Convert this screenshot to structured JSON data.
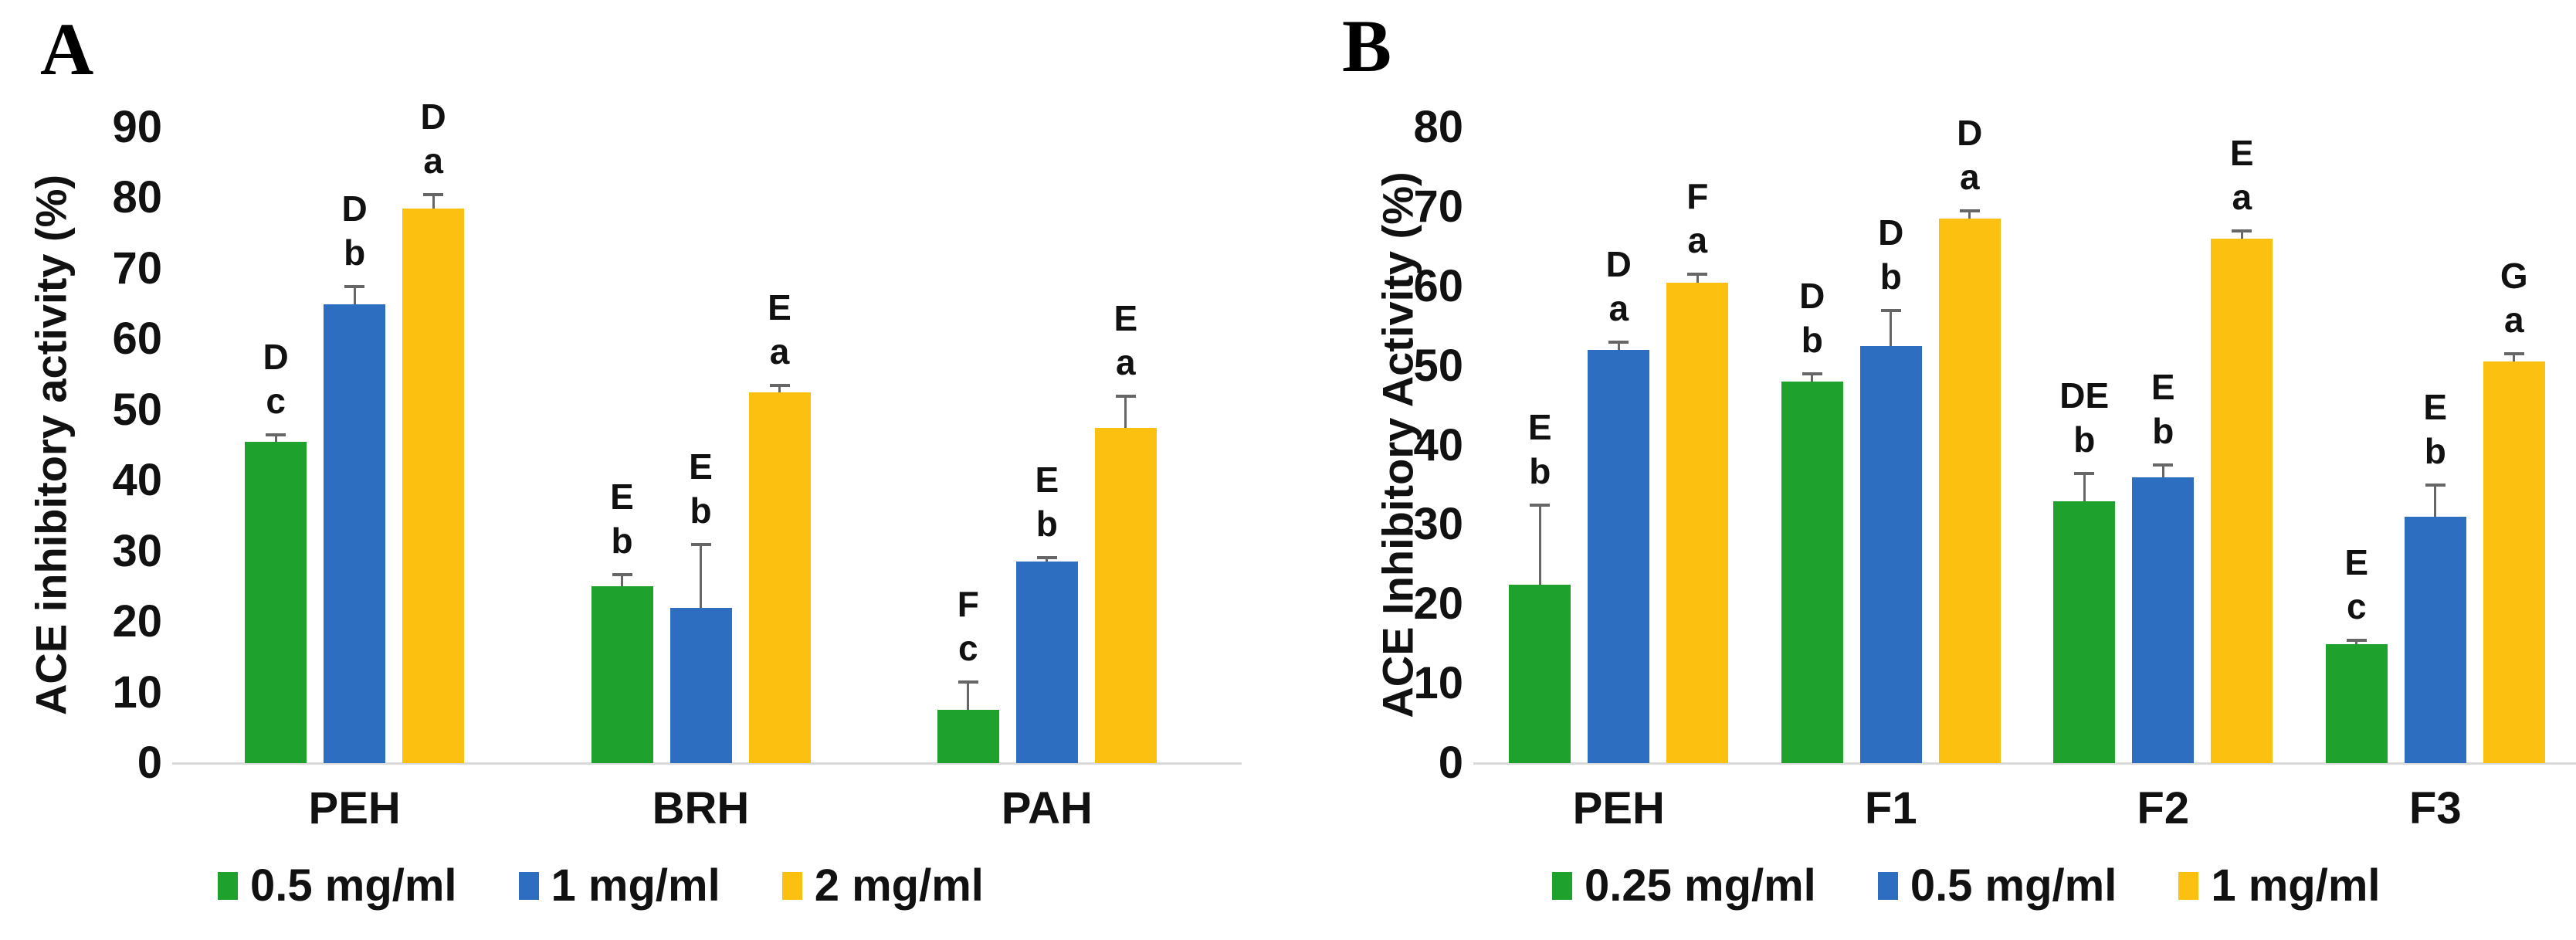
{
  "figure_title": "",
  "colors": {
    "series_green": "#1fa12d",
    "series_blue": "#2d6ec0",
    "series_yellow": "#fcc010",
    "axis_line": "#d9d9d9",
    "error_bar": "#666666",
    "text": "#111111"
  },
  "chart_data": [
    {
      "type": "bar",
      "panel_label": "A",
      "ylabel": "ACE inhibitory activity (%)",
      "xlabel": "",
      "ylim": [
        0,
        90
      ],
      "y_ticks": [
        0,
        10,
        20,
        30,
        40,
        50,
        60,
        70,
        80,
        90
      ],
      "grid": false,
      "legend_position": "bottom",
      "categories": [
        "PEH",
        "BRH",
        "PAH"
      ],
      "series": [
        {
          "name": "0.5 mg/ml",
          "color": "#1fa12d",
          "values": [
            45.5,
            25,
            7.5
          ],
          "errors": [
            1,
            1.7,
            4
          ],
          "letters": [
            [
              "D",
              "c"
            ],
            [
              "E",
              "b"
            ],
            [
              "F",
              "c"
            ]
          ]
        },
        {
          "name": "1 mg/ml",
          "color": "#2d6ec0",
          "values": [
            65,
            22,
            28.5
          ],
          "errors": [
            2.5,
            9,
            0.6
          ],
          "letters": [
            [
              "D",
              "b"
            ],
            [
              "E",
              "b"
            ],
            [
              "E",
              "b"
            ]
          ]
        },
        {
          "name": "2 mg/ml",
          "color": "#fcc010",
          "values": [
            78.5,
            52.5,
            47.5
          ],
          "errors": [
            2,
            1,
            4.5
          ],
          "letters": [
            [
              "D",
              "a"
            ],
            [
              "E",
              "a"
            ],
            [
              "E",
              "a"
            ]
          ]
        }
      ]
    },
    {
      "type": "bar",
      "panel_label": "B",
      "ylabel": "ACE Inhibitory Activity (%)",
      "xlabel": "",
      "ylim": [
        0,
        80
      ],
      "y_ticks": [
        0,
        10,
        20,
        30,
        40,
        50,
        60,
        70,
        80
      ],
      "grid": false,
      "legend_position": "bottom",
      "categories": [
        "PEH",
        "F1",
        "F2",
        "F3"
      ],
      "series": [
        {
          "name": "0.25 mg/ml",
          "color": "#1fa12d",
          "values": [
            22.5,
            48,
            33,
            15
          ],
          "errors": [
            10,
            1,
            3.5,
            0.5
          ],
          "letters": [
            [
              "E",
              "b"
            ],
            [
              "D",
              "b"
            ],
            [
              "DE",
              "b"
            ],
            [
              "E",
              "c"
            ]
          ]
        },
        {
          "name": "0.5 mg/ml",
          "color": "#2d6ec0",
          "values": [
            52,
            52.5,
            36,
            31
          ],
          "errors": [
            1,
            4.5,
            1.5,
            4
          ],
          "letters": [
            [
              "D",
              "a"
            ],
            [
              "D",
              "b"
            ],
            [
              "E",
              "b"
            ],
            [
              "E",
              "b"
            ]
          ]
        },
        {
          "name": "1 mg/ml",
          "color": "#fcc010",
          "values": [
            60.5,
            68.5,
            66,
            50.5
          ],
          "errors": [
            1,
            1,
            1,
            1
          ],
          "letters": [
            [
              "F",
              "a"
            ],
            [
              "D",
              "a"
            ],
            [
              "E",
              "a"
            ],
            [
              "G",
              "a"
            ]
          ]
        }
      ]
    }
  ]
}
